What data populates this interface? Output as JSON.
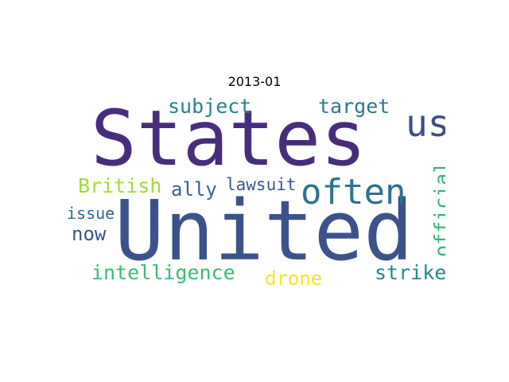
{
  "title": "2013-01",
  "words": [
    {
      "text": "States",
      "color": "#472d7b",
      "rank": 1,
      "orientation": "horizontal"
    },
    {
      "text": "United",
      "color": "#3b528b",
      "rank": 2,
      "orientation": "horizontal"
    },
    {
      "text": "us",
      "color": "#3e4c8a",
      "rank": 3,
      "orientation": "horizontal"
    },
    {
      "text": "often",
      "color": "#2c728e",
      "rank": 4,
      "orientation": "horizontal"
    },
    {
      "text": "official",
      "color": "#35b779",
      "rank": 5,
      "orientation": "vertical"
    },
    {
      "text": "subject",
      "color": "#26828e",
      "rank": 6,
      "orientation": "horizontal"
    },
    {
      "text": "target",
      "color": "#2a788e",
      "rank": 7,
      "orientation": "horizontal"
    },
    {
      "text": "British",
      "color": "#a2da37",
      "rank": 8,
      "orientation": "horizontal"
    },
    {
      "text": "ally",
      "color": "#33638d",
      "rank": 9,
      "orientation": "horizontal"
    },
    {
      "text": "lawsuit",
      "color": "#39568c",
      "rank": 10,
      "orientation": "horizontal"
    },
    {
      "text": "issue",
      "color": "#31688e",
      "rank": 11,
      "orientation": "horizontal"
    },
    {
      "text": "now",
      "color": "#3b528b",
      "rank": 12,
      "orientation": "horizontal"
    },
    {
      "text": "intelligence",
      "color": "#3bbb75",
      "rank": 13,
      "orientation": "horizontal"
    },
    {
      "text": "drone",
      "color": "#f5e61f",
      "rank": 14,
      "orientation": "horizontal"
    },
    {
      "text": "strike",
      "color": "#238a8d",
      "rank": 15,
      "orientation": "horizontal"
    }
  ]
}
